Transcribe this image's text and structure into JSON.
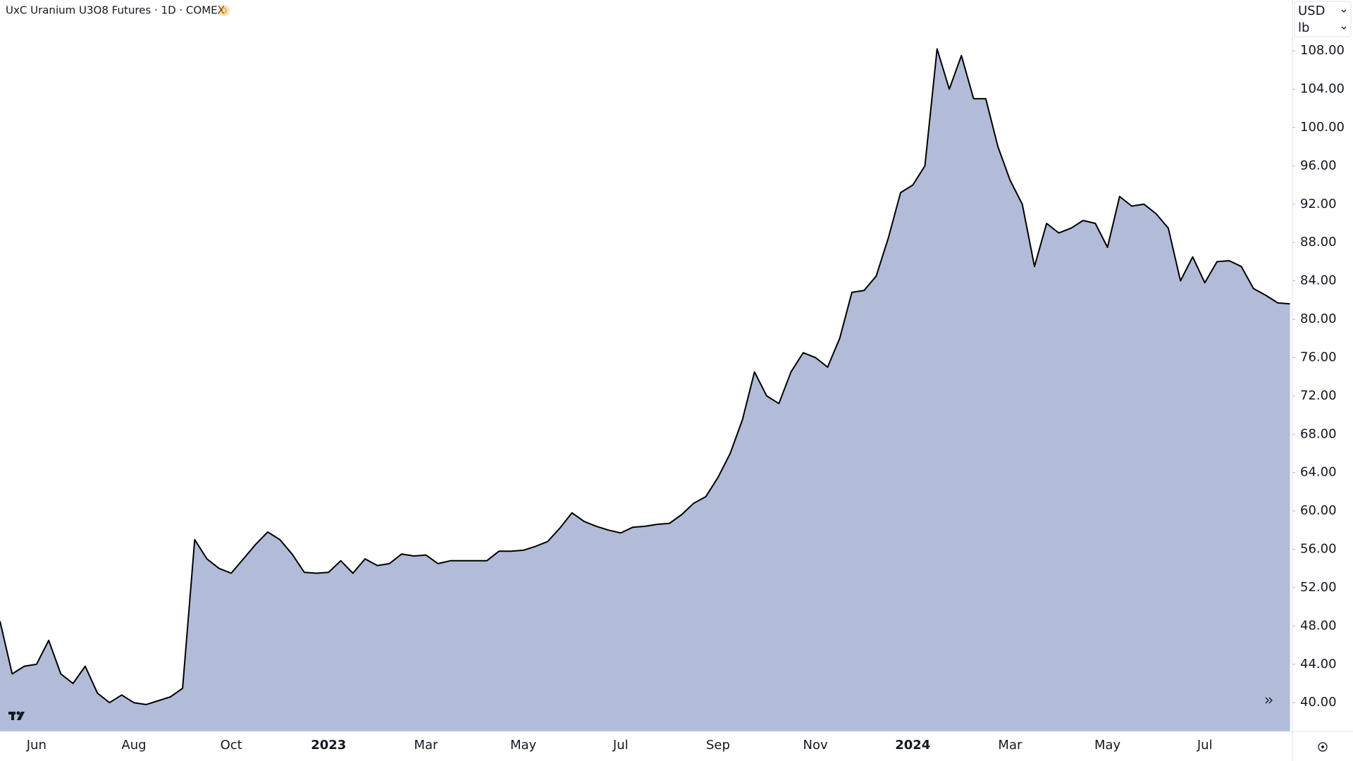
{
  "chart_data": {
    "type": "area",
    "title": "UxC Uranium U3O8 Futures · 1D · COMEX",
    "badge": "D",
    "currency": "USD",
    "unit": "lb",
    "color": "#b2bbd8",
    "line_color": "#000000",
    "grid": false,
    "categories": [
      null,
      null,
      null,
      "Jun",
      null,
      null,
      null,
      null,
      null,
      null,
      null,
      "Aug",
      null,
      null,
      null,
      null,
      null,
      null,
      null,
      "Oct",
      null,
      null,
      null,
      null,
      null,
      null,
      null,
      "2023",
      null,
      null,
      null,
      null,
      null,
      null,
      null,
      "Mar",
      null,
      null,
      null,
      null,
      null,
      null,
      null,
      "May",
      null,
      null,
      null,
      null,
      null,
      null,
      null,
      "Jul",
      null,
      null,
      null,
      null,
      null,
      null,
      null,
      "Sep",
      null,
      null,
      null,
      null,
      null,
      null,
      null,
      "Nov",
      null,
      null,
      null,
      null,
      null,
      null,
      null,
      "2024",
      null,
      null,
      null,
      null,
      null,
      null,
      null,
      "Mar",
      null,
      null,
      null,
      null,
      null,
      null,
      null,
      "May",
      null,
      null,
      null,
      null,
      null,
      null,
      null,
      "Jul",
      null,
      null,
      null,
      null,
      null,
      null,
      null
    ],
    "values": [
      48.5,
      43,
      43.8,
      44,
      46.5,
      43,
      42,
      43.8,
      41,
      40,
      40.8,
      40,
      39.8,
      40.2,
      40.6,
      41.5,
      57,
      55,
      54,
      53.5,
      55,
      56.5,
      57.8,
      57,
      55.5,
      53.6,
      53.5,
      53.6,
      54.8,
      53.5,
      55,
      54.3,
      54.5,
      55.5,
      55.3,
      55.4,
      54.5,
      54.8,
      54.8,
      54.8,
      54.8,
      55.8,
      55.8,
      55.9,
      56.3,
      56.8,
      58.2,
      59.8,
      58.9,
      58.4,
      58,
      57.7,
      58.3,
      58.4,
      58.6,
      58.7,
      59.6,
      60.8,
      61.5,
      63.5,
      66,
      69.5,
      74.5,
      72,
      71.2,
      74.5,
      76.5,
      76,
      75,
      78,
      82.8,
      83,
      84.5,
      88.5,
      93.2,
      94,
      96,
      108.2,
      104,
      107.5,
      103,
      103,
      98,
      94.5,
      92,
      85.5,
      90,
      89,
      89.5,
      90.3,
      90,
      87.5,
      92.8,
      91.8,
      92,
      91,
      89.5,
      84,
      86.5,
      83.8,
      86,
      86.1,
      85.5,
      83.2,
      82.5,
      81.7,
      81.6
    ],
    "ylim": [
      37,
      113.3
    ],
    "yticks": [
      {
        "value": 40,
        "label": "40.00"
      },
      {
        "value": 44,
        "label": "44.00"
      },
      {
        "value": 48,
        "label": "48.00"
      },
      {
        "value": 52,
        "label": "52.00"
      },
      {
        "value": 56,
        "label": "56.00"
      },
      {
        "value": 60,
        "label": "60.00"
      },
      {
        "value": 64,
        "label": "64.00"
      },
      {
        "value": 68,
        "label": "68.00"
      },
      {
        "value": 72,
        "label": "72.00"
      },
      {
        "value": 76,
        "label": "76.00"
      },
      {
        "value": 80,
        "label": "80.00"
      },
      {
        "value": 84,
        "label": "84.00"
      },
      {
        "value": 88,
        "label": "88.00"
      },
      {
        "value": 92,
        "label": "92.00"
      },
      {
        "value": 96,
        "label": "96.00"
      },
      {
        "value": 100,
        "label": "100.00"
      },
      {
        "value": 104,
        "label": "104.00"
      },
      {
        "value": 108,
        "label": "108.00"
      }
    ]
  }
}
